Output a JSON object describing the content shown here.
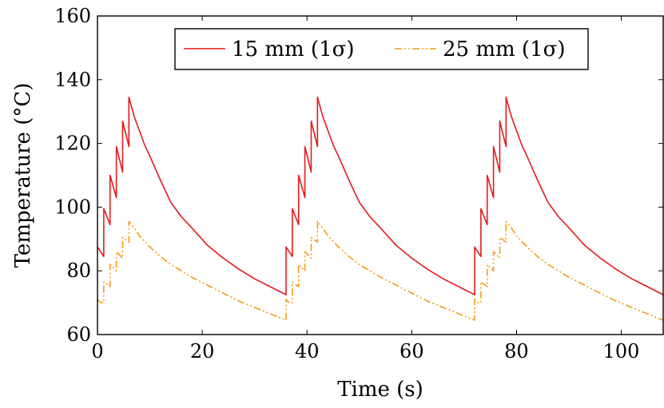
{
  "chart_data": {
    "type": "line",
    "xlabel": "Time (s)",
    "ylabel": "Temperature (°C)",
    "xlim": [
      0,
      108
    ],
    "ylim": [
      60,
      160
    ],
    "xticks": [
      0,
      20,
      40,
      60,
      80,
      100
    ],
    "xtick_labels": [
      "0",
      "20",
      "40",
      "60",
      "80",
      "100"
    ],
    "yticks": [
      60,
      80,
      100,
      120,
      140,
      160
    ],
    "ytick_labels": [
      "60",
      "80",
      "100",
      "120",
      "140",
      "160"
    ],
    "grid": false,
    "legend_position": "top",
    "series": [
      {
        "name": "15 mm (1σ)",
        "color": "#e41a1c",
        "style": "solid",
        "points": [
          [
            0,
            87.5
          ],
          [
            1.2,
            84.5
          ],
          [
            1.2,
            99.5
          ],
          [
            2.4,
            94.5
          ],
          [
            2.4,
            110
          ],
          [
            3.6,
            103
          ],
          [
            3.6,
            119
          ],
          [
            4.8,
            111
          ],
          [
            4.8,
            127
          ],
          [
            6,
            119
          ],
          [
            6,
            134.5
          ],
          [
            7,
            128.5
          ],
          [
            8,
            124
          ],
          [
            9,
            119.5
          ],
          [
            10,
            116
          ],
          [
            12,
            108.5
          ],
          [
            14,
            101.5
          ],
          [
            16,
            97
          ],
          [
            18,
            93.5
          ],
          [
            21,
            88
          ],
          [
            24,
            84
          ],
          [
            27,
            80.5
          ],
          [
            30,
            77.5
          ],
          [
            33,
            75
          ],
          [
            36,
            72.5
          ],
          [
            36,
            87.5
          ],
          [
            37.2,
            84.5
          ],
          [
            37.2,
            99.5
          ],
          [
            38.4,
            94.5
          ],
          [
            38.4,
            110
          ],
          [
            39.6,
            103
          ],
          [
            39.6,
            119
          ],
          [
            40.8,
            111
          ],
          [
            40.8,
            127
          ],
          [
            42,
            119
          ],
          [
            42,
            134.5
          ],
          [
            43,
            128.5
          ],
          [
            44,
            124
          ],
          [
            45,
            119.5
          ],
          [
            46,
            116
          ],
          [
            48,
            108.5
          ],
          [
            50,
            101.5
          ],
          [
            52,
            97
          ],
          [
            54,
            93.5
          ],
          [
            57,
            88
          ],
          [
            60,
            84
          ],
          [
            63,
            80.5
          ],
          [
            66,
            77.5
          ],
          [
            69,
            75
          ],
          [
            72,
            72.5
          ],
          [
            72,
            87.5
          ],
          [
            73.2,
            84.5
          ],
          [
            73.2,
            99.5
          ],
          [
            74.4,
            94.5
          ],
          [
            74.4,
            110
          ],
          [
            75.6,
            103
          ],
          [
            75.6,
            119
          ],
          [
            76.8,
            111
          ],
          [
            76.8,
            127
          ],
          [
            78,
            119
          ],
          [
            78,
            134.5
          ],
          [
            79,
            128.5
          ],
          [
            80,
            124
          ],
          [
            81,
            119.5
          ],
          [
            82,
            116
          ],
          [
            84,
            108.5
          ],
          [
            86,
            101.5
          ],
          [
            88,
            97
          ],
          [
            90,
            93.5
          ],
          [
            93,
            88
          ],
          [
            96,
            84
          ],
          [
            99,
            80.5
          ],
          [
            102,
            77.5
          ],
          [
            105,
            75
          ],
          [
            108,
            72.5
          ]
        ]
      },
      {
        "name": "25 mm (1σ)",
        "color": "#f39c12",
        "style": "dashdot",
        "points": [
          [
            0,
            71
          ],
          [
            0.6,
            70
          ],
          [
            1.2,
            70
          ],
          [
            1.2,
            76.5
          ],
          [
            2.4,
            75
          ],
          [
            2.4,
            82
          ],
          [
            3.6,
            80
          ],
          [
            3.6,
            86
          ],
          [
            4.8,
            84
          ],
          [
            4.8,
            90.5
          ],
          [
            6,
            89
          ],
          [
            6,
            95.5
          ],
          [
            7,
            93.5
          ],
          [
            8,
            91
          ],
          [
            10,
            87.5
          ],
          [
            12,
            84.5
          ],
          [
            14,
            82
          ],
          [
            16,
            80
          ],
          [
            18,
            78
          ],
          [
            21,
            75.5
          ],
          [
            24,
            73
          ],
          [
            27,
            70.5
          ],
          [
            30,
            68.5
          ],
          [
            33,
            66.5
          ],
          [
            36,
            64.5
          ],
          [
            36,
            71
          ],
          [
            36.6,
            70
          ],
          [
            37.2,
            70
          ],
          [
            37.2,
            76.5
          ],
          [
            38.4,
            75
          ],
          [
            38.4,
            82
          ],
          [
            39.6,
            80
          ],
          [
            39.6,
            86
          ],
          [
            40.8,
            84
          ],
          [
            40.8,
            90.5
          ],
          [
            42,
            89
          ],
          [
            42,
            95.5
          ],
          [
            43,
            93.5
          ],
          [
            44,
            91
          ],
          [
            46,
            87.5
          ],
          [
            48,
            84.5
          ],
          [
            50,
            82
          ],
          [
            52,
            80
          ],
          [
            54,
            78
          ],
          [
            57,
            75.5
          ],
          [
            60,
            73
          ],
          [
            63,
            70.5
          ],
          [
            66,
            68.5
          ],
          [
            69,
            66.5
          ],
          [
            72,
            64.5
          ],
          [
            72,
            71
          ],
          [
            72.6,
            70
          ],
          [
            73.2,
            70
          ],
          [
            73.2,
            76.5
          ],
          [
            74.4,
            75
          ],
          [
            74.4,
            82
          ],
          [
            75.6,
            80
          ],
          [
            75.6,
            86
          ],
          [
            76.8,
            84
          ],
          [
            76.8,
            90.5
          ],
          [
            78,
            89
          ],
          [
            78,
            95.5
          ],
          [
            79,
            93.5
          ],
          [
            80,
            91
          ],
          [
            82,
            87.5
          ],
          [
            84,
            84.5
          ],
          [
            86,
            82
          ],
          [
            88,
            80
          ],
          [
            90,
            78
          ],
          [
            93,
            75.5
          ],
          [
            96,
            73
          ],
          [
            99,
            70.5
          ],
          [
            102,
            68.5
          ],
          [
            105,
            66.5
          ],
          [
            108,
            64.5
          ]
        ]
      }
    ]
  }
}
